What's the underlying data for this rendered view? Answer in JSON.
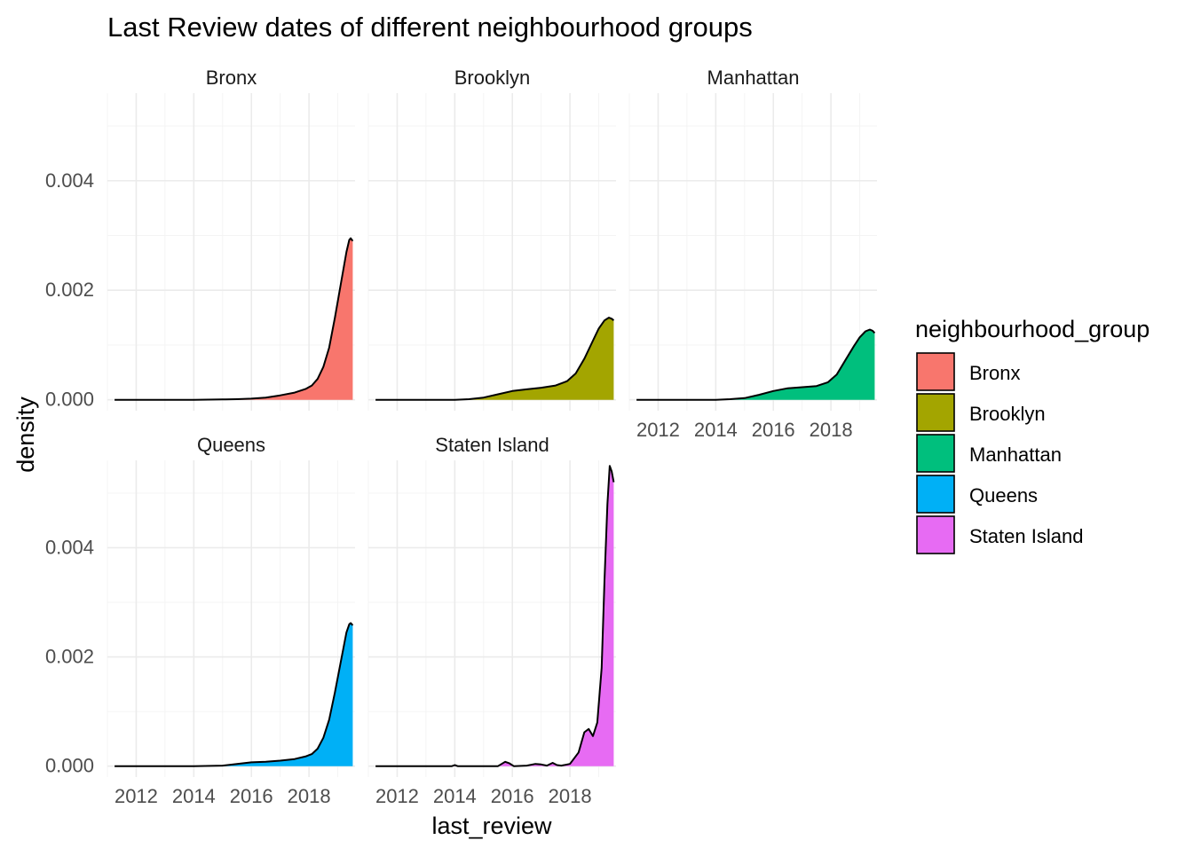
{
  "chart_data": {
    "type": "area",
    "title": "Last Review dates of different neighbourhood groups",
    "xlabel": "last_review",
    "ylabel": "density",
    "xlim": [
      2011.0,
      2019.6
    ],
    "ylim": [
      -0.0002,
      0.0056
    ],
    "x_ticks": [
      2012,
      2014,
      2016,
      2018
    ],
    "x_tick_labels": [
      "2012",
      "2014",
      "2016",
      "2018"
    ],
    "y_ticks": [
      0,
      0.002,
      0.004
    ],
    "y_tick_labels": [
      "0.000",
      "0.002",
      "0.004"
    ],
    "grid": true,
    "legend": {
      "title": "neighbourhood_group",
      "placement": "right",
      "entries": [
        "Bronx",
        "Brooklyn",
        "Manhattan",
        "Queens",
        "Staten Island"
      ]
    },
    "panels": [
      {
        "name": "Bronx",
        "color": "#F8766D",
        "x": [
          2011.25,
          2013.0,
          2014.0,
          2015.0,
          2015.5,
          2016.0,
          2016.5,
          2017.0,
          2017.5,
          2017.9,
          2018.1,
          2018.3,
          2018.5,
          2018.7,
          2018.9,
          2019.1,
          2019.3,
          2019.4,
          2019.45,
          2019.52
        ],
        "y": [
          0,
          0,
          0,
          5e-06,
          1e-05,
          2e-05,
          4e-05,
          8e-05,
          0.00013,
          0.0002,
          0.00026,
          0.00038,
          0.0006,
          0.00095,
          0.0015,
          0.0021,
          0.0027,
          0.00292,
          0.00295,
          0.0029
        ]
      },
      {
        "name": "Brooklyn",
        "color": "#A3A500",
        "x": [
          2011.25,
          2013.0,
          2014.0,
          2014.5,
          2015.0,
          2015.5,
          2016.0,
          2016.5,
          2017.0,
          2017.5,
          2017.9,
          2018.2,
          2018.5,
          2018.8,
          2019.0,
          2019.2,
          2019.35,
          2019.45,
          2019.52
        ],
        "y": [
          0,
          0,
          0,
          1e-05,
          4e-05,
          0.0001,
          0.00016,
          0.00019,
          0.00022,
          0.00026,
          0.00034,
          0.00048,
          0.00075,
          0.00108,
          0.0013,
          0.00145,
          0.0015,
          0.00148,
          0.00145
        ]
      },
      {
        "name": "Manhattan",
        "color": "#00BF7D",
        "x": [
          2011.25,
          2013.0,
          2014.0,
          2014.5,
          2015.0,
          2015.5,
          2016.0,
          2016.5,
          2017.0,
          2017.5,
          2017.9,
          2018.2,
          2018.5,
          2018.8,
          2019.0,
          2019.2,
          2019.35,
          2019.45,
          2019.52
        ],
        "y": [
          0,
          0,
          0,
          1e-05,
          3e-05,
          9e-05,
          0.00016,
          0.00021,
          0.00023,
          0.00025,
          0.00032,
          0.00046,
          0.00072,
          0.00098,
          0.00114,
          0.00125,
          0.00128,
          0.00126,
          0.00122
        ]
      },
      {
        "name": "Queens",
        "color": "#00B0F6",
        "x": [
          2011.25,
          2013.0,
          2014.0,
          2015.0,
          2015.5,
          2016.0,
          2016.5,
          2017.0,
          2017.5,
          2017.9,
          2018.1,
          2018.3,
          2018.5,
          2018.7,
          2018.9,
          2019.1,
          2019.3,
          2019.4,
          2019.45,
          2019.52
        ],
        "y": [
          0,
          0,
          0,
          1e-05,
          4e-05,
          7e-05,
          8e-05,
          0.0001,
          0.00013,
          0.00018,
          0.00022,
          0.00032,
          0.00052,
          0.00085,
          0.00135,
          0.0019,
          0.00245,
          0.0026,
          0.00262,
          0.00258
        ]
      },
      {
        "name": "Staten Island",
        "color": "#E76BF3",
        "x": [
          2011.25,
          2013.0,
          2013.9,
          2014.0,
          2014.1,
          2015.5,
          2015.75,
          2015.9,
          2016.05,
          2016.5,
          2016.8,
          2017.0,
          2017.2,
          2017.4,
          2017.55,
          2017.7,
          2018.0,
          2018.3,
          2018.5,
          2018.65,
          2018.8,
          2018.95,
          2019.1,
          2019.2,
          2019.3,
          2019.38,
          2019.45,
          2019.52
        ],
        "y": [
          0,
          0,
          0,
          2e-05,
          0,
          0,
          8e-05,
          5e-05,
          0,
          1e-05,
          4e-05,
          3e-05,
          1e-05,
          6e-05,
          2e-05,
          1e-05,
          4e-05,
          0.00025,
          0.00062,
          0.00068,
          0.00055,
          0.0008,
          0.0018,
          0.0034,
          0.0048,
          0.0055,
          0.0054,
          0.0052
        ]
      }
    ]
  }
}
